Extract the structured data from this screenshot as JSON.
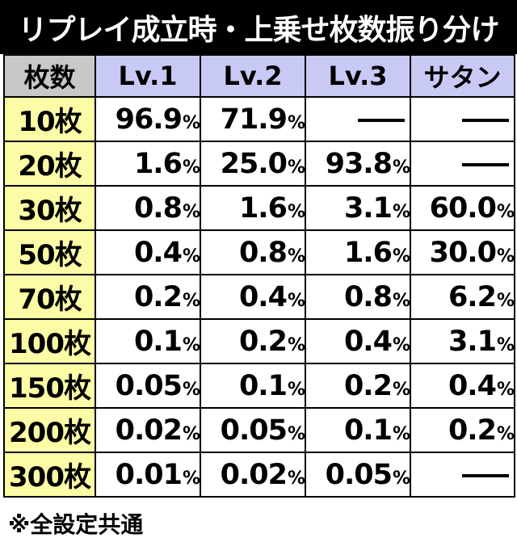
{
  "title": "リプレイ成立時・上乗せ枚数振り分け",
  "table": {
    "corner": "枚数",
    "columns": [
      "Lv.1",
      "Lv.2",
      "Lv.3",
      "サタン"
    ],
    "rows": [
      {
        "label": "10枚",
        "values": [
          "96.9",
          "71.9",
          "—",
          "—"
        ]
      },
      {
        "label": "20枚",
        "values": [
          "1.6",
          "25.0",
          "93.8",
          "—"
        ]
      },
      {
        "label": "30枚",
        "values": [
          "0.8",
          "1.6",
          "3.1",
          "60.0"
        ]
      },
      {
        "label": "50枚",
        "values": [
          "0.4",
          "0.8",
          "1.6",
          "30.0"
        ]
      },
      {
        "label": "70枚",
        "values": [
          "0.2",
          "0.4",
          "0.8",
          "6.2"
        ]
      },
      {
        "label": "100枚",
        "values": [
          "0.1",
          "0.2",
          "0.4",
          "3.1"
        ]
      },
      {
        "label": "150枚",
        "values": [
          "0.05",
          "0.1",
          "0.2",
          "0.4"
        ]
      },
      {
        "label": "200枚",
        "values": [
          "0.02",
          "0.05",
          "0.1",
          "0.2"
        ]
      },
      {
        "label": "300枚",
        "values": [
          "0.01",
          "0.02",
          "0.05",
          "—"
        ]
      }
    ],
    "percent_sign": "%"
  },
  "note": "※全設定共通",
  "colors": {
    "title_bg": "#000000",
    "header_bg": "#c9c9f6",
    "corner_bg": "#c8c8c8",
    "row_label_bg": "#fdfca6",
    "cell_bg": "#ffffff"
  }
}
